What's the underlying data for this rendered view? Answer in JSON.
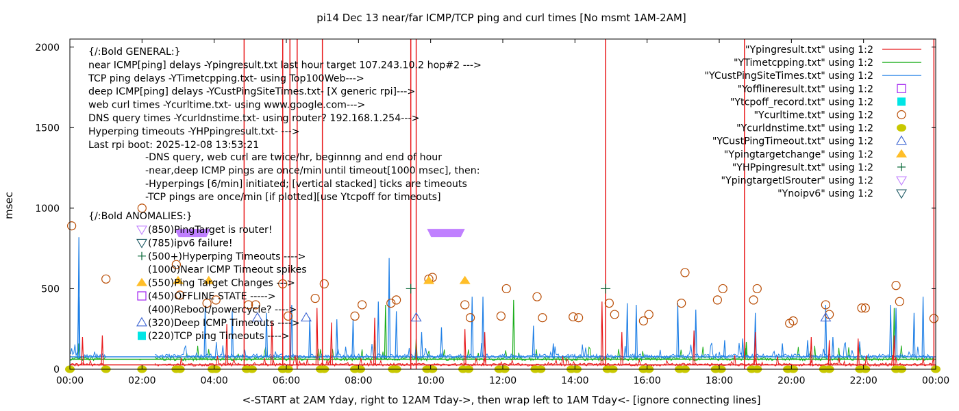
{
  "chart_data": {
    "type": "line",
    "title": "pi14 Dec 13  near/far ICMP/TCP ping and curl times [No msmt 1AM-2AM]",
    "xlabel": "<-START at 2AM Yday, right to 12AM Tday->, then wrap left to 1AM Tday<- [ignore connecting lines]",
    "ylabel": "msec",
    "xlim_hours": [
      0,
      24
    ],
    "ylim": [
      0,
      2050
    ],
    "x_ticks": [
      "00:00",
      "02:00",
      "04:00",
      "06:00",
      "08:00",
      "10:00",
      "12:00",
      "14:00",
      "16:00",
      "18:00",
      "20:00",
      "22:00",
      "00:00"
    ],
    "y_ticks": [
      "0",
      "500",
      "1000",
      "1500",
      "2000"
    ],
    "y_tick_values": [
      0,
      500,
      1000,
      1500,
      2000
    ],
    "grid": false,
    "legend_position": "top-right",
    "legend": [
      {
        "label": "\"Ypingresult.txt\" using 1:2",
        "style": "line",
        "color": "#e8191b"
      },
      {
        "label": "\"YTimetcpping.txt\" using 1:2",
        "style": "line",
        "color": "#1aad1a"
      },
      {
        "label": "\"YCustPingSiteTimes.txt\" using 1:2",
        "style": "line",
        "color": "#1e7fe6"
      },
      {
        "label": "\"Yofflineresult.txt\" using 1:2",
        "style": "open-square",
        "color": "#a020f0"
      },
      {
        "label": "\"Ytcpoff_record.txt\" using 1:2",
        "style": "filled-square",
        "color": "#00e5e5"
      },
      {
        "label": "\"Ycurltime.txt\" using 1:2",
        "style": "open-circle",
        "color": "#b84a00"
      },
      {
        "label": "\"Ycurldnstime.txt\" using 1:2",
        "style": "filled-circle",
        "color": "#c8c800"
      },
      {
        "label": "\"YCustPingTimeout.txt\" using 1:2",
        "style": "open-triangle",
        "color": "#3c64d2"
      },
      {
        "label": "\"Ypingtargetchange\" using 1:2",
        "style": "filled-triangle",
        "color": "#ffbe28"
      },
      {
        "label": "\"YHPpingresult.txt\" using 1:2",
        "style": "plus",
        "color": "#006432"
      },
      {
        "label": "\"YpingtargetISrouter\" using 1:2",
        "style": "open-down-triangle",
        "color": "#c080ff"
      },
      {
        "label": "\"Ynoipv6\" using 1:2",
        "style": "open-down-triangle",
        "color": "#1e5a64"
      }
    ],
    "annotations": {
      "general": [
        "{/:Bold GENERAL:}",
        "near ICMP[ping] delays -Ypingresult.txt last hour target 107.243.10.2 hop#2 --->",
        "TCP ping delays -YTimetcpping.txt- using Top100Web--->",
        "deep ICMP[ping] delays -YCustPingSiteTimes.txt- [X generic rpi]--->",
        "web curl times -Ycurltime.txt- using www.google.com--->",
        "DNS query times -Ycurldnstime.txt- using router? 192.168.1.254--->",
        "Hyperping timeouts -YHPpingresult.txt- --->",
        "Last rpi boot: 2025-12-08 13:53:21"
      ],
      "notes": [
        "-DNS query, web curl are twice/hr, beginnng and end of hour",
        "-near,deep ICMP pings are once/min until timeout[1000 msec], then:",
        " -Hyperpings [6/min] initiated; [vertical stacked] ticks are timeouts",
        "-TCP pings are once/min [if plotted][use Ytcpoff for timeouts]"
      ],
      "anomalies_header": "{/:Bold ANOMALIES:}",
      "anomalies": [
        {
          "marker": "open-down-triangle",
          "color": "#c080ff",
          "text": "(850)PingTarget is router!"
        },
        {
          "marker": "open-down-triangle",
          "color": "#1e5a64",
          "text": "(785)ipv6 failure!"
        },
        {
          "marker": "plus",
          "color": "#006432",
          "text": "(500+)Hyperping Timeouts ---->"
        },
        {
          "marker": "none",
          "color": "",
          "text": "(1000)Near ICMP Timeout spikes"
        },
        {
          "marker": "filled-triangle",
          "color": "#ffbe28",
          "text": "(550)Ping Target Changes --->"
        },
        {
          "marker": "open-square",
          "color": "#a020f0",
          "text": "(450)OFFLINE STATE ----->"
        },
        {
          "marker": "none",
          "color": "",
          "text": "(400)Reboot/powercycle? ---->"
        },
        {
          "marker": "open-triangle",
          "color": "#3c64d2",
          "text": "(320)Deep ICMP Timeouts ---->"
        },
        {
          "marker": "filled-square",
          "color": "#00e5e5",
          "text": "(220)TCP ping Timeouts ---->"
        }
      ]
    },
    "series": {
      "near_icmp_baseline_ms": 25,
      "tcp_baseline_ms": 60,
      "deep_icmp_baseline_ms": 75,
      "near_icmp_timeout_spikes_hours": [
        4.83,
        5.9,
        6.1,
        6.3,
        7.0,
        9.45,
        9.6,
        14.85,
        18.7,
        23.95
      ],
      "near_icmp_spikes": [
        {
          "x": 0.35,
          "y": 200
        },
        {
          "x": 0.9,
          "y": 210
        },
        {
          "x": 4.35,
          "y": 280
        },
        {
          "x": 5.6,
          "y": 300
        },
        {
          "x": 6.85,
          "y": 380
        },
        {
          "x": 7.25,
          "y": 290
        },
        {
          "x": 8.45,
          "y": 320
        },
        {
          "x": 10.95,
          "y": 250
        },
        {
          "x": 11.5,
          "y": 230
        },
        {
          "x": 14.75,
          "y": 420
        },
        {
          "x": 15.3,
          "y": 230
        },
        {
          "x": 17.3,
          "y": 240
        },
        {
          "x": 19.0,
          "y": 230
        },
        {
          "x": 20.55,
          "y": 200
        },
        {
          "x": 21.05,
          "y": 180
        },
        {
          "x": 21.85,
          "y": 190
        },
        {
          "x": 22.85,
          "y": 210
        }
      ],
      "deep_icmp_spikes": [
        {
          "x": 0.25,
          "y": 820
        },
        {
          "x": 0.24,
          "y": 450
        },
        {
          "x": 3.75,
          "y": 380
        },
        {
          "x": 4.5,
          "y": 360
        },
        {
          "x": 5.45,
          "y": 350
        },
        {
          "x": 6.15,
          "y": 400
        },
        {
          "x": 6.65,
          "y": 320
        },
        {
          "x": 7.4,
          "y": 310
        },
        {
          "x": 7.85,
          "y": 310
        },
        {
          "x": 8.55,
          "y": 420
        },
        {
          "x": 8.85,
          "y": 690
        },
        {
          "x": 9.05,
          "y": 360
        },
        {
          "x": 9.75,
          "y": 230
        },
        {
          "x": 10.3,
          "y": 260
        },
        {
          "x": 11.15,
          "y": 450
        },
        {
          "x": 11.45,
          "y": 450
        },
        {
          "x": 12.85,
          "y": 270
        },
        {
          "x": 13.4,
          "y": 160
        },
        {
          "x": 15.45,
          "y": 410
        },
        {
          "x": 15.7,
          "y": 400
        },
        {
          "x": 16.85,
          "y": 410
        },
        {
          "x": 17.35,
          "y": 370
        },
        {
          "x": 18.15,
          "y": 180
        },
        {
          "x": 18.65,
          "y": 190
        },
        {
          "x": 19.0,
          "y": 350
        },
        {
          "x": 19.75,
          "y": 160
        },
        {
          "x": 20.45,
          "y": 180
        },
        {
          "x": 20.95,
          "y": 400
        },
        {
          "x": 21.15,
          "y": 200
        },
        {
          "x": 22.75,
          "y": 400
        },
        {
          "x": 22.9,
          "y": 380
        },
        {
          "x": 23.4,
          "y": 350
        },
        {
          "x": 23.65,
          "y": 450
        }
      ],
      "tcp_spikes": [
        {
          "x": 0.25,
          "y": 160
        },
        {
          "x": 1.95,
          "y": 60
        },
        {
          "x": 8.45,
          "y": 180
        },
        {
          "x": 8.75,
          "y": 400
        },
        {
          "x": 9.6,
          "y": 190
        },
        {
          "x": 12.3,
          "y": 430
        },
        {
          "x": 18.75,
          "y": 170
        },
        {
          "x": 22.85,
          "y": 380
        }
      ],
      "curl_times": [
        {
          "x": 0.05,
          "y": 890
        },
        {
          "x": 1.0,
          "y": 560
        },
        {
          "x": 2.0,
          "y": 1000
        },
        {
          "x": 2.95,
          "y": 650
        },
        {
          "x": 3.05,
          "y": 460
        },
        {
          "x": 3.8,
          "y": 410
        },
        {
          "x": 4.05,
          "y": 430
        },
        {
          "x": 4.95,
          "y": 400
        },
        {
          "x": 5.15,
          "y": 400
        },
        {
          "x": 5.9,
          "y": 530
        },
        {
          "x": 6.05,
          "y": 330
        },
        {
          "x": 6.8,
          "y": 440
        },
        {
          "x": 7.05,
          "y": 530
        },
        {
          "x": 7.9,
          "y": 330
        },
        {
          "x": 8.1,
          "y": 400
        },
        {
          "x": 8.9,
          "y": 410
        },
        {
          "x": 9.05,
          "y": 430
        },
        {
          "x": 9.95,
          "y": 560
        },
        {
          "x": 10.05,
          "y": 570
        },
        {
          "x": 10.95,
          "y": 400
        },
        {
          "x": 11.1,
          "y": 320
        },
        {
          "x": 11.95,
          "y": 330
        },
        {
          "x": 12.1,
          "y": 500
        },
        {
          "x": 12.95,
          "y": 450
        },
        {
          "x": 13.1,
          "y": 320
        },
        {
          "x": 13.95,
          "y": 325
        },
        {
          "x": 14.1,
          "y": 320
        },
        {
          "x": 14.95,
          "y": 410
        },
        {
          "x": 15.1,
          "y": 340
        },
        {
          "x": 15.9,
          "y": 300
        },
        {
          "x": 16.05,
          "y": 340
        },
        {
          "x": 16.95,
          "y": 410
        },
        {
          "x": 17.05,
          "y": 600
        },
        {
          "x": 17.95,
          "y": 430
        },
        {
          "x": 18.1,
          "y": 500
        },
        {
          "x": 18.95,
          "y": 430
        },
        {
          "x": 19.05,
          "y": 500
        },
        {
          "x": 19.95,
          "y": 285
        },
        {
          "x": 20.05,
          "y": 300
        },
        {
          "x": 20.95,
          "y": 400
        },
        {
          "x": 21.05,
          "y": 340
        },
        {
          "x": 21.95,
          "y": 380
        },
        {
          "x": 22.05,
          "y": 380
        },
        {
          "x": 22.9,
          "y": 520
        },
        {
          "x": 23.0,
          "y": 420
        },
        {
          "x": 23.95,
          "y": 315
        }
      ],
      "dns_times_hours": [
        0.0,
        1.0,
        2.0,
        2.95,
        3.05,
        3.95,
        4.05,
        4.9,
        5.05,
        5.9,
        6.05,
        6.95,
        7.05,
        7.9,
        8.05,
        8.95,
        9.05,
        9.9,
        10.05,
        10.9,
        11.05,
        11.9,
        12.05,
        12.9,
        13.05,
        13.9,
        14.05,
        14.9,
        15.05,
        15.9,
        16.05,
        16.9,
        17.05,
        17.9,
        18.05,
        18.9,
        19.05,
        19.9,
        20.05,
        20.9,
        21.05,
        21.9,
        22.05,
        22.9,
        23.05,
        24.0
      ],
      "dns_time_ms": 0,
      "deep_icmp_timeouts": [
        {
          "x": 5.2,
          "y": 320
        },
        {
          "x": 6.55,
          "y": 320
        },
        {
          "x": 9.6,
          "y": 320
        },
        {
          "x": 20.95,
          "y": 320
        }
      ],
      "ping_target_changes": [
        {
          "x": 3.0,
          "y": 550
        },
        {
          "x": 3.85,
          "y": 550
        },
        {
          "x": 9.95,
          "y": 550
        },
        {
          "x": 10.95,
          "y": 550
        }
      ],
      "hyperping_timeouts": [
        {
          "x": 9.45,
          "y": 500
        },
        {
          "x": 14.85,
          "y": 500
        }
      ],
      "ping_target_is_router_ranges": [
        {
          "x0": 2.9,
          "x1": 3.9,
          "y": 850
        },
        {
          "x0": 9.9,
          "x1": 10.95,
          "y": 850
        }
      ]
    }
  }
}
